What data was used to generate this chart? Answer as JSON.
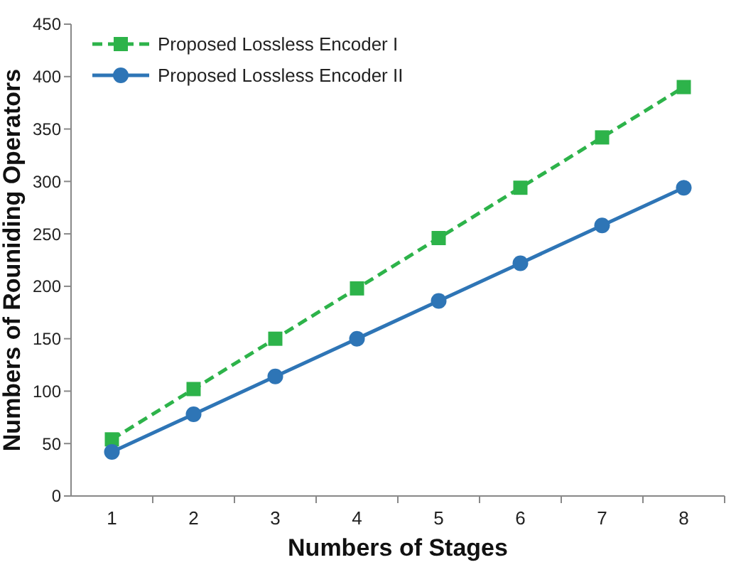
{
  "chart_data": {
    "type": "line",
    "xlabel": "Numbers of Stages",
    "ylabel": "Numbers of Rouniding Operators",
    "categories": [
      "1",
      "2",
      "3",
      "4",
      "5",
      "6",
      "7",
      "8"
    ],
    "series": [
      {
        "name": "Proposed Lossless Encoder I",
        "color": "#2db34a",
        "marker": "square",
        "line_style": "dashed",
        "values": [
          54,
          102,
          150,
          198,
          246,
          294,
          342,
          390
        ]
      },
      {
        "name": "Proposed Lossless Encoder II",
        "color": "#2e75b6",
        "marker": "circle",
        "line_style": "solid",
        "values": [
          42,
          78,
          114,
          150,
          186,
          222,
          258,
          294
        ]
      }
    ],
    "ylim": [
      0,
      450
    ],
    "yticks": [
      0,
      50,
      100,
      150,
      200,
      250,
      300,
      350,
      400,
      450
    ],
    "grid": false,
    "legend": "top left"
  }
}
